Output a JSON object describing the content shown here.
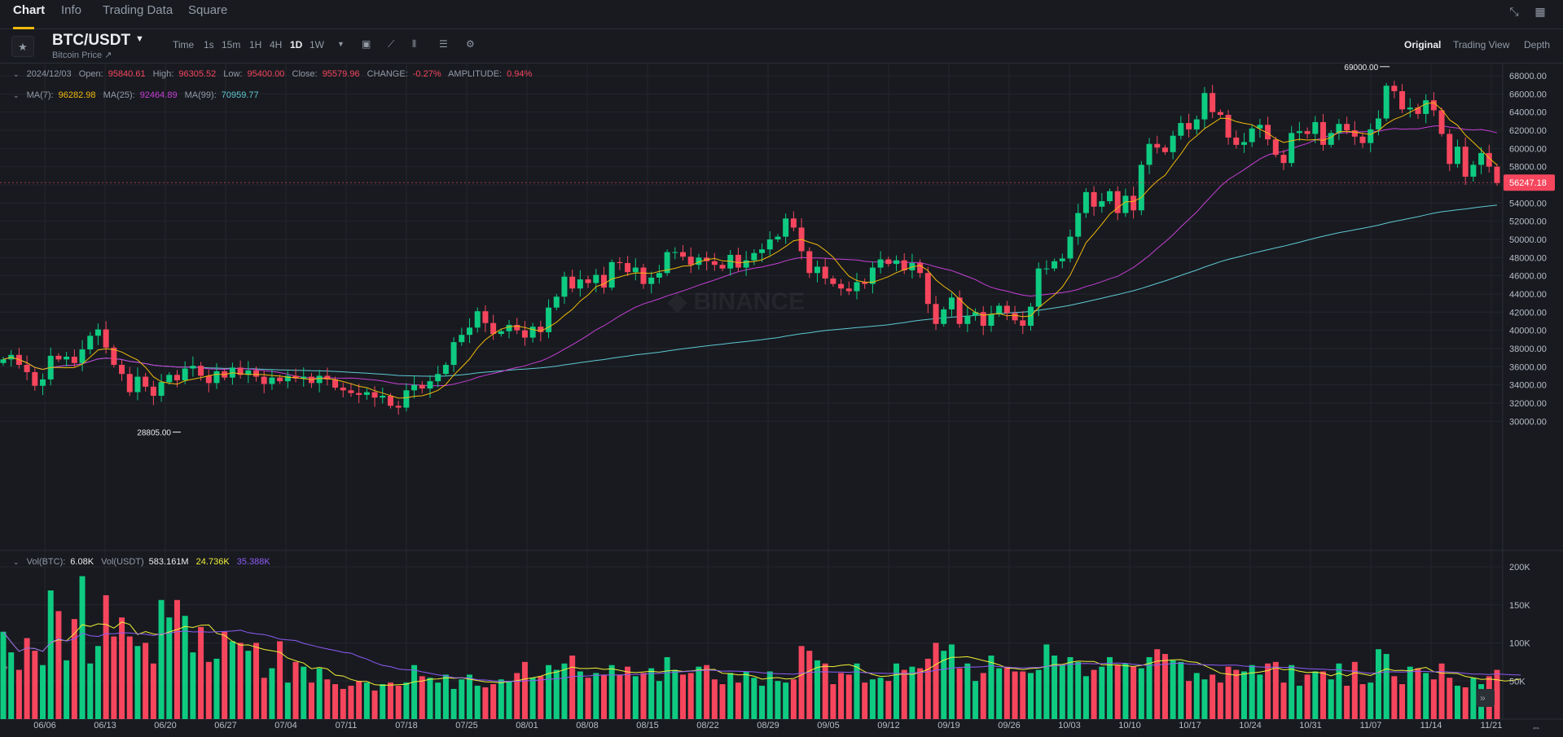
{
  "top_tabs": [
    "Chart",
    "Info",
    "Trading Data",
    "Square"
  ],
  "header": {
    "symbol": "BTC/USDT",
    "subtitle": "Bitcoin Price",
    "timeframes": [
      "Time",
      "1s",
      "15m",
      "1H",
      "4H",
      "1D",
      "1W"
    ],
    "active_timeframe": "1D",
    "views": [
      "Original",
      "Trading View",
      "Depth"
    ],
    "active_view": "Original"
  },
  "ohlc": {
    "date": "2024/12/03",
    "open_label": "Open:",
    "open": "95840.61",
    "high_label": "High:",
    "high": "96305.52",
    "low_label": "Low:",
    "low": "95400.00",
    "close_label": "Close:",
    "close": "95579.96",
    "change_label": "CHANGE:",
    "change": "-0.27%",
    "amplitude_label": "AMPLITUDE:",
    "amplitude": "0.94%"
  },
  "ma": {
    "ma7_label": "MA(7):",
    "ma7": "96282.98",
    "ma25_label": "MA(25):",
    "ma25": "92464.89",
    "ma99_label": "MA(99):",
    "ma99": "70959.77"
  },
  "vol": {
    "btc_label": "Vol(BTC):",
    "btc": "6.08K",
    "usdt_label": "Vol(USDT)",
    "usdt": "583.161M",
    "ma1": "24.736K",
    "ma2": "35.388K"
  },
  "colors": {
    "up": "#0ecb81",
    "down": "#f6465d",
    "ma7": "#f0b90b",
    "ma25": "#c73fd5",
    "ma99": "#5fc9d2",
    "accent": "#f0b90b",
    "bg": "#181a20",
    "grid": "#23262d"
  },
  "chart_data": {
    "type": "candlestick",
    "price_axis": {
      "ticks": [
        30000,
        32000,
        34000,
        36000,
        38000,
        40000,
        42000,
        44000,
        46000,
        48000,
        50000,
        52000,
        54000,
        56000,
        58000,
        60000,
        62000,
        64000,
        66000,
        68000
      ],
      "tick_labels": [
        "30000.00",
        "32000.00",
        "34000.00",
        "36000.00",
        "38000.00",
        "40000.00",
        "42000.00",
        "44000.00",
        "46000.00",
        "48000.00",
        "50000.00",
        "52000.00",
        "54000.00",
        "56000.00",
        "58000.00",
        "60000.00",
        "62000.00",
        "64000.00",
        "66000.00",
        "68000.00"
      ]
    },
    "volume_axis": {
      "ticks": [
        50000,
        100000,
        150000,
        200000
      ],
      "tick_labels": [
        "50K",
        "100K",
        "150K",
        "200K"
      ]
    },
    "x_labels": [
      "06/06",
      "06/13",
      "06/20",
      "06/27",
      "07/04",
      "07/11",
      "07/18",
      "07/25",
      "08/01",
      "08/08",
      "08/15",
      "08/22",
      "08/29",
      "09/05",
      "09/12",
      "09/19",
      "09/26",
      "10/03",
      "10/10",
      "10/17",
      "10/24",
      "10/31",
      "11/07",
      "11/14",
      "11/21"
    ],
    "last_price": 56247.18,
    "last_price_label": "56247.18",
    "high_marker": {
      "value": 69000,
      "label": "69000.00"
    },
    "low_marker": {
      "value": 28805,
      "label": "28805.00"
    },
    "closes": [
      36800,
      37300,
      36200,
      35400,
      33900,
      34600,
      37200,
      36800,
      37100,
      36400,
      37900,
      39400,
      40100,
      38100,
      36200,
      35200,
      33200,
      34900,
      33800,
      32800,
      34300,
      35100,
      34500,
      35800,
      36100,
      35000,
      34200,
      35500,
      34800,
      35900,
      35100,
      35600,
      34900,
      34100,
      34800,
      34400,
      35000,
      34700,
      34900,
      34200,
      35000,
      34600,
      33700,
      33400,
      33100,
      32900,
      33200,
      32600,
      32800,
      31700,
      31500,
      33400,
      34000,
      33600,
      34400,
      35200,
      36200,
      38700,
      39500,
      40300,
      42100,
      40800,
      39600,
      39900,
      40600,
      40000,
      39200,
      40400,
      39800,
      42500,
      43700,
      45900,
      44600,
      45600,
      45200,
      46100,
      44700,
      47500,
      47400,
      46400,
      46900,
      45100,
      45800,
      46300,
      48600,
      48600,
      48100,
      47200,
      48000,
      47600,
      47200,
      46800,
      48300,
      46900,
      47700,
      48500,
      48900,
      50000,
      50300,
      52300,
      51300,
      48700,
      46300,
      47000,
      45700,
      45100,
      44600,
      44300,
      45300,
      45100,
      46900,
      47800,
      47300,
      47700,
      46600,
      47400,
      46300,
      42900,
      40700,
      42300,
      43600,
      40700,
      41600,
      42000,
      40500,
      41800,
      42700,
      41900,
      41100,
      40500,
      42600,
      46800,
      46800,
      47600,
      47900,
      50300,
      52900,
      55200,
      53600,
      54200,
      55300,
      52900,
      54800,
      53200,
      58200,
      60500,
      60100,
      59600,
      61400,
      62800,
      62100,
      63200,
      66100,
      64000,
      63700,
      61200,
      60400,
      60700,
      62200,
      62600,
      61000,
      59300,
      58400,
      61700,
      61900,
      61600,
      62900,
      60400,
      61700,
      62700,
      62000,
      61300,
      60600,
      62100,
      63300,
      66900,
      66300,
      64300,
      64500,
      63800,
      65300,
      64200,
      61600,
      58300,
      60200,
      56900,
      58200,
      59500,
      58000,
      56200
    ],
    "vol_height_ratios": [
      0.55,
      0.42,
      0.31,
      0.51,
      0.43,
      0.34,
      0.81,
      0.68,
      0.37,
      0.63,
      0.9,
      0.35,
      0.46,
      0.78,
      0.52,
      0.64,
      0.52,
      0.46,
      0.48,
      0.35,
      0.75,
      0.64,
      0.75,
      0.65,
      0.42,
      0.58,
      0.36,
      0.38,
      0.55,
      0.49,
      0.48,
      0.43,
      0.48,
      0.26,
      0.32,
      0.49,
      0.23,
      0.36,
      0.33,
      0.23,
      0.32,
      0.25,
      0.22,
      0.19,
      0.21,
      0.24,
      0.23,
      0.18,
      0.22,
      0.23,
      0.21,
      0.23,
      0.34,
      0.27,
      0.26,
      0.23,
      0.28,
      0.19,
      0.25,
      0.28,
      0.21,
      0.2,
      0.22,
      0.25,
      0.24,
      0.29,
      0.36,
      0.26,
      0.27,
      0.34,
      0.31,
      0.35,
      0.4,
      0.3,
      0.26,
      0.29,
      0.28,
      0.34,
      0.28,
      0.33,
      0.27,
      0.29,
      0.32,
      0.24,
      0.39,
      0.31,
      0.28,
      0.29,
      0.33,
      0.34,
      0.25,
      0.22,
      0.29,
      0.23,
      0.3,
      0.26,
      0.21,
      0.3,
      0.24,
      0.23,
      0.25,
      0.46,
      0.43,
      0.37,
      0.35,
      0.22,
      0.29,
      0.28,
      0.35,
      0.23,
      0.25,
      0.26,
      0.24,
      0.35,
      0.31,
      0.33,
      0.32,
      0.38,
      0.48,
      0.43,
      0.47,
      0.32,
      0.35,
      0.24,
      0.29,
      0.4,
      0.32,
      0.33,
      0.3,
      0.3,
      0.29,
      0.31,
      0.47,
      0.4,
      0.34,
      0.39,
      0.36,
      0.27,
      0.31,
      0.33,
      0.39,
      0.34,
      0.35,
      0.33,
      0.32,
      0.39,
      0.44,
      0.41,
      0.37,
      0.36,
      0.24,
      0.29,
      0.25,
      0.28,
      0.23,
      0.33,
      0.31,
      0.3,
      0.34,
      0.28,
      0.35,
      0.36,
      0.23,
      0.34,
      0.21,
      0.28,
      0.3,
      0.3,
      0.25,
      0.35,
      0.21,
      0.36,
      0.22,
      0.23,
      0.44,
      0.41,
      0.27,
      0.22,
      0.33,
      0.32,
      0.29,
      0.25,
      0.35,
      0.26,
      0.21,
      0.2,
      0.26,
      0.22,
      0.27,
      0.31,
      0.21,
      0.24,
      0.26
    ]
  }
}
